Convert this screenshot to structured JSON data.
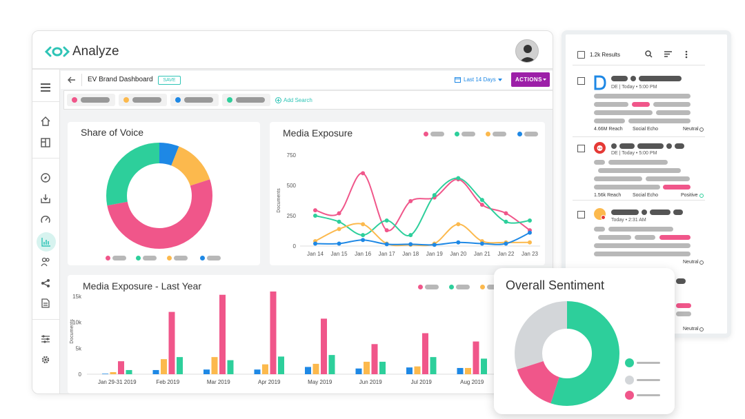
{
  "app": {
    "name": "Analyze"
  },
  "toolbar": {
    "dashboard_title": "EV Brand Dashboard",
    "save_label": "SAVE",
    "date_range": "Last 14 Days",
    "actions_label": "ACTIONS"
  },
  "search_bar": {
    "add_search_label": "Add Search"
  },
  "share_of_voice": {
    "title": "Share of Voice"
  },
  "media_exposure": {
    "title": "Media Exposure"
  },
  "last_year": {
    "title": "Media Exposure - Last Year"
  },
  "sentiment": {
    "title": "Overall Sentiment"
  },
  "results": {
    "count": "1.2k Results",
    "items": [
      {
        "meta": "DE | Today • 5:00 PM",
        "reach": "4.66M Reach",
        "source": "Social Echo",
        "sentiment": "Neutral"
      },
      {
        "meta": "DE | Today • 5:00 PM",
        "reach": "1.56k Reach",
        "source": "Social Echo",
        "sentiment": "Positive"
      },
      {
        "meta": "Today • 2:31 AM",
        "sentiment": "Neutral"
      },
      {
        "sentiment": "Neutral"
      }
    ]
  },
  "colors": {
    "teal": "#2dcf9b",
    "pink": "#f0568a",
    "orange": "#fcb94d",
    "blue": "#1e88e5",
    "purple": "#9c1fa8",
    "gray": "#d3d6d9"
  },
  "chart_data": [
    {
      "type": "pie",
      "title": "Share of Voice",
      "values": [
        6,
        14,
        52,
        28
      ],
      "colors": [
        "#1e88e5",
        "#fcb94d",
        "#f0568a",
        "#2dcf9b"
      ]
    },
    {
      "type": "line",
      "title": "Media Exposure",
      "ylabel": "Documents",
      "ylim": [
        0,
        750
      ],
      "yticks": [
        "750",
        "500",
        "250",
        "0"
      ],
      "categories": [
        "Jan 14",
        "Jan 15",
        "Jan 16",
        "Jan 17",
        "Jan 18",
        "Jan 19",
        "Jan 20",
        "Jan 21",
        "Jan 22",
        "Jan 23"
      ],
      "series": [
        {
          "color": "#f0568a",
          "values": [
            295,
            270,
            600,
            130,
            370,
            400,
            550,
            340,
            270,
            130
          ]
        },
        {
          "color": "#2dcf9b",
          "values": [
            250,
            200,
            90,
            210,
            90,
            420,
            560,
            380,
            200,
            210
          ]
        },
        {
          "color": "#fcb94d",
          "values": [
            40,
            140,
            180,
            20,
            10,
            20,
            180,
            40,
            30,
            30
          ]
        },
        {
          "color": "#1e88e5",
          "values": [
            20,
            20,
            50,
            15,
            15,
            10,
            30,
            20,
            20,
            110
          ]
        }
      ]
    },
    {
      "type": "bar",
      "title": "Media Exposure - Last Year",
      "ylabel": "Documents",
      "ylim": [
        0,
        15000
      ],
      "yticks": [
        "15k",
        "10k",
        "5k",
        "0"
      ],
      "categories": [
        "Jan 29-31 2019",
        "Feb 2019",
        "Mar 2019",
        "Apr 2019",
        "May 2019",
        "Jun 2019",
        "Jul 2019",
        "Aug 2019"
      ],
      "series": [
        {
          "color": "#1e88e5",
          "values": [
            100,
            800,
            900,
            900,
            1400,
            1100,
            1300,
            1200
          ]
        },
        {
          "color": "#fcb94d",
          "values": [
            400,
            2900,
            3300,
            1900,
            2000,
            2400,
            1500,
            1200
          ]
        },
        {
          "color": "#f0568a",
          "values": [
            2500,
            12000,
            15300,
            16100,
            10700,
            5800,
            7900,
            6300
          ]
        },
        {
          "color": "#2dcf9b",
          "values": [
            800,
            3300,
            2700,
            3400,
            3700,
            2400,
            3300,
            3000
          ]
        }
      ]
    },
    {
      "type": "pie",
      "title": "Overall Sentiment",
      "values": [
        55,
        15,
        30
      ],
      "colors": [
        "#2dcf9b",
        "#f0568a",
        "#d3d6d9"
      ]
    }
  ]
}
